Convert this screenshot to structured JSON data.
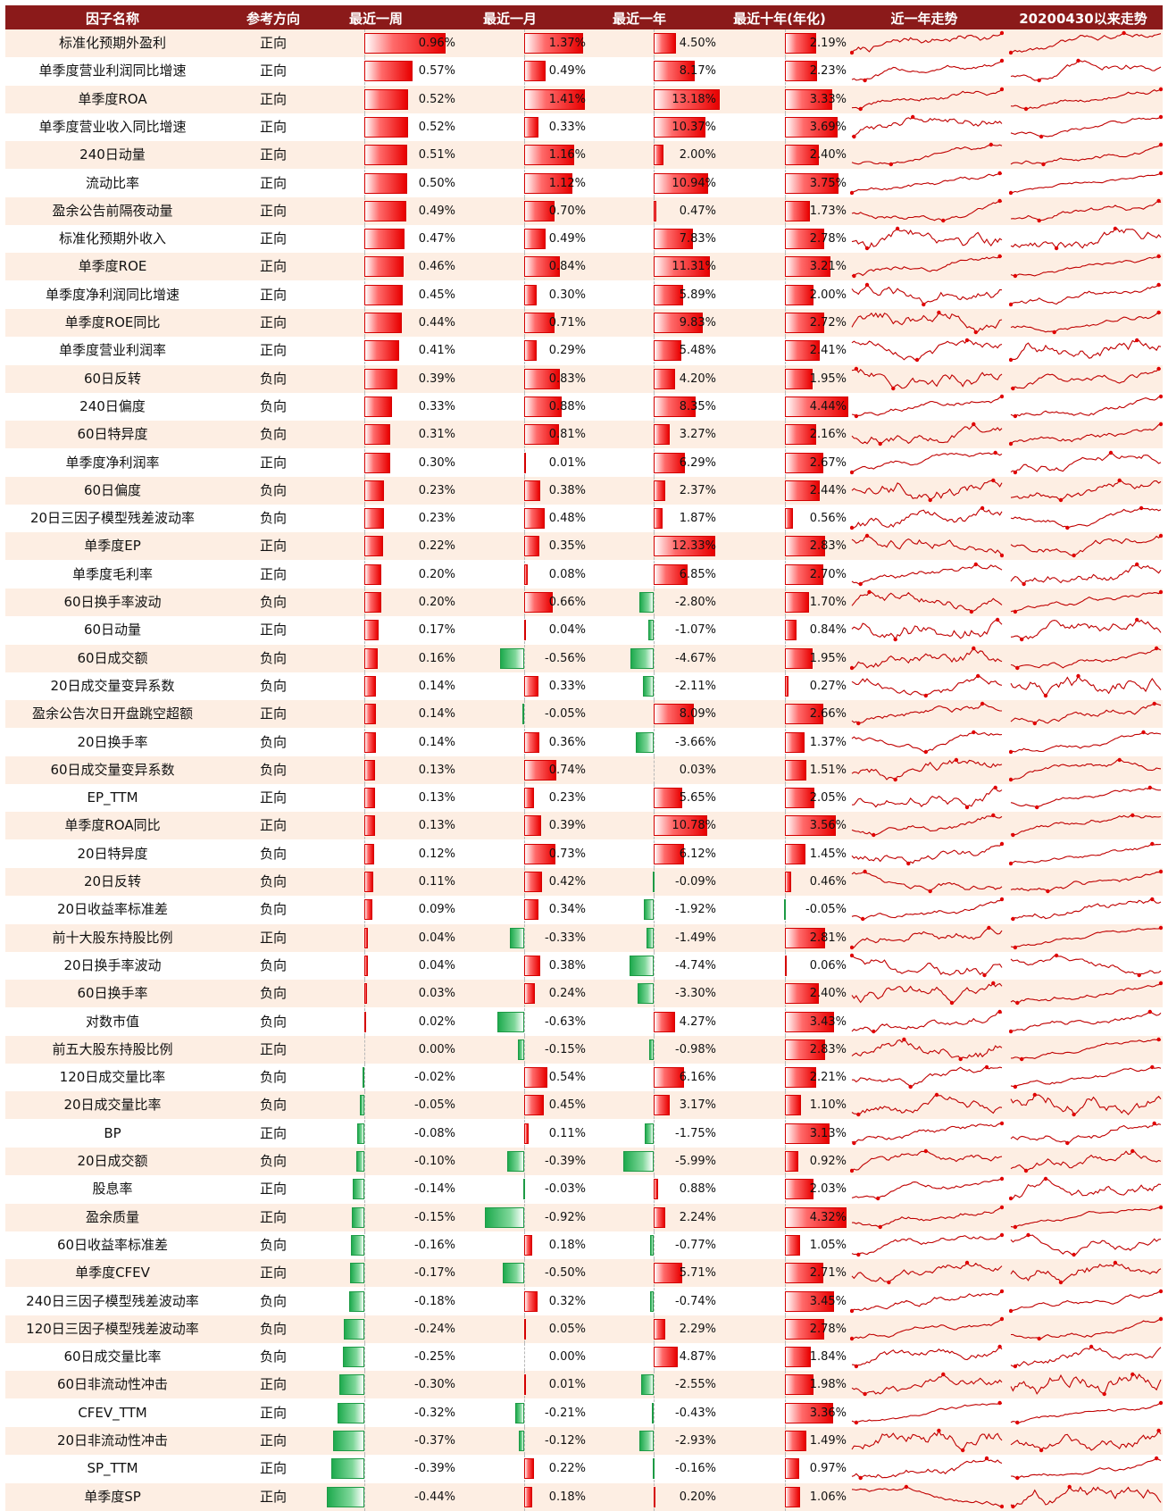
{
  "header": {
    "factor_name": "因子名称",
    "direction": "参考方向",
    "week": "最近一周",
    "month": "最近一月",
    "year": "最近一年",
    "decade": "最近十年(年化)",
    "trend_year": "近一年走势",
    "trend_since": "20200430以来走势"
  },
  "colors": {
    "header_bg": "#8b1a1a",
    "row_alt": "#fdeee3",
    "positive": "#e80000",
    "negative": "#1eaa4e",
    "sparkline": "#c00000"
  },
  "chart_data": {
    "type": "table",
    "title": "",
    "columns": [
      "因子名称",
      "参考方向",
      "最近一周",
      "最近一月",
      "最近一年",
      "最近十年(年化)",
      "近一年走势",
      "20200430以来走势"
    ],
    "rows": [
      {
        "name": "标准化预期外盈利",
        "direction": "正向",
        "week": 0.96,
        "month": 1.37,
        "year": 4.5,
        "decade": 2.19
      },
      {
        "name": "单季度营业利润同比增速",
        "direction": "正向",
        "week": 0.57,
        "month": 0.49,
        "year": 8.17,
        "decade": 2.23
      },
      {
        "name": "单季度ROA",
        "direction": "正向",
        "week": 0.52,
        "month": 1.41,
        "year": 13.18,
        "decade": 3.33
      },
      {
        "name": "单季度营业收入同比增速",
        "direction": "正向",
        "week": 0.52,
        "month": 0.33,
        "year": 10.37,
        "decade": 3.69
      },
      {
        "name": "240日动量",
        "direction": "正向",
        "week": 0.51,
        "month": 1.16,
        "year": 2.0,
        "decade": 2.4
      },
      {
        "name": "流动比率",
        "direction": "正向",
        "week": 0.5,
        "month": 1.12,
        "year": 10.94,
        "decade": 3.75
      },
      {
        "name": "盈余公告前隔夜动量",
        "direction": "正向",
        "week": 0.49,
        "month": 0.7,
        "year": 0.47,
        "decade": 1.73
      },
      {
        "name": "标准化预期外收入",
        "direction": "正向",
        "week": 0.47,
        "month": 0.49,
        "year": 7.83,
        "decade": 2.78
      },
      {
        "name": "单季度ROE",
        "direction": "正向",
        "week": 0.46,
        "month": 0.84,
        "year": 11.31,
        "decade": 3.21
      },
      {
        "name": "单季度净利润同比增速",
        "direction": "正向",
        "week": 0.45,
        "month": 0.3,
        "year": 5.89,
        "decade": 2.0
      },
      {
        "name": "单季度ROE同比",
        "direction": "正向",
        "week": 0.44,
        "month": 0.71,
        "year": 9.83,
        "decade": 2.72
      },
      {
        "name": "单季度营业利润率",
        "direction": "正向",
        "week": 0.41,
        "month": 0.29,
        "year": 5.48,
        "decade": 2.41
      },
      {
        "name": "60日反转",
        "direction": "负向",
        "week": 0.39,
        "month": 0.83,
        "year": 4.2,
        "decade": 1.95
      },
      {
        "name": "240日偏度",
        "direction": "负向",
        "week": 0.33,
        "month": 0.88,
        "year": 8.35,
        "decade": 4.44
      },
      {
        "name": "60日特异度",
        "direction": "负向",
        "week": 0.31,
        "month": 0.81,
        "year": 3.27,
        "decade": 2.16
      },
      {
        "name": "单季度净利润率",
        "direction": "正向",
        "week": 0.3,
        "month": 0.01,
        "year": 6.29,
        "decade": 2.67
      },
      {
        "name": "60日偏度",
        "direction": "负向",
        "week": 0.23,
        "month": 0.38,
        "year": 2.37,
        "decade": 2.44
      },
      {
        "name": "20日三因子模型残差波动率",
        "direction": "负向",
        "week": 0.23,
        "month": 0.48,
        "year": 1.87,
        "decade": 0.56
      },
      {
        "name": "单季度EP",
        "direction": "正向",
        "week": 0.22,
        "month": 0.35,
        "year": 12.33,
        "decade": 2.83
      },
      {
        "name": "单季度毛利率",
        "direction": "正向",
        "week": 0.2,
        "month": 0.08,
        "year": 6.85,
        "decade": 2.7
      },
      {
        "name": "60日换手率波动",
        "direction": "负向",
        "week": 0.2,
        "month": 0.66,
        "year": -2.8,
        "decade": 1.7
      },
      {
        "name": "60日动量",
        "direction": "正向",
        "week": 0.17,
        "month": 0.04,
        "year": -1.07,
        "decade": 0.84
      },
      {
        "name": "60日成交额",
        "direction": "负向",
        "week": 0.16,
        "month": -0.56,
        "year": -4.67,
        "decade": 1.95
      },
      {
        "name": "20日成交量变异系数",
        "direction": "负向",
        "week": 0.14,
        "month": 0.33,
        "year": -2.11,
        "decade": 0.27
      },
      {
        "name": "盈余公告次日开盘跳空超额",
        "direction": "正向",
        "week": 0.14,
        "month": -0.05,
        "year": 8.09,
        "decade": 2.66
      },
      {
        "name": "20日换手率",
        "direction": "负向",
        "week": 0.14,
        "month": 0.36,
        "year": -3.66,
        "decade": 1.37
      },
      {
        "name": "60日成交量变异系数",
        "direction": "负向",
        "week": 0.13,
        "month": 0.74,
        "year": 0.03,
        "decade": 1.51
      },
      {
        "name": "EP_TTM",
        "direction": "正向",
        "week": 0.13,
        "month": 0.23,
        "year": 5.65,
        "decade": 2.05
      },
      {
        "name": "单季度ROA同比",
        "direction": "正向",
        "week": 0.13,
        "month": 0.39,
        "year": 10.78,
        "decade": 3.56
      },
      {
        "name": "20日特异度",
        "direction": "负向",
        "week": 0.12,
        "month": 0.73,
        "year": 6.12,
        "decade": 1.45
      },
      {
        "name": "20日反转",
        "direction": "负向",
        "week": 0.11,
        "month": 0.42,
        "year": -0.09,
        "decade": 0.46
      },
      {
        "name": "20日收益率标准差",
        "direction": "负向",
        "week": 0.09,
        "month": 0.34,
        "year": -1.92,
        "decade": -0.05
      },
      {
        "name": "前十大股东持股比例",
        "direction": "正向",
        "week": 0.04,
        "month": -0.33,
        "year": -1.49,
        "decade": 2.81
      },
      {
        "name": "20日换手率波动",
        "direction": "负向",
        "week": 0.04,
        "month": 0.38,
        "year": -4.74,
        "decade": 0.06
      },
      {
        "name": "60日换手率",
        "direction": "负向",
        "week": 0.03,
        "month": 0.24,
        "year": -3.3,
        "decade": 2.4
      },
      {
        "name": "对数市值",
        "direction": "负向",
        "week": 0.02,
        "month": -0.63,
        "year": 4.27,
        "decade": 3.43
      },
      {
        "name": "前五大股东持股比例",
        "direction": "正向",
        "week": 0.0,
        "month": -0.15,
        "year": -0.98,
        "decade": 2.83
      },
      {
        "name": "120日成交量比率",
        "direction": "负向",
        "week": -0.02,
        "month": 0.54,
        "year": 6.16,
        "decade": 2.21
      },
      {
        "name": "20日成交量比率",
        "direction": "负向",
        "week": -0.05,
        "month": 0.45,
        "year": 3.17,
        "decade": 1.1
      },
      {
        "name": "BP",
        "direction": "正向",
        "week": -0.08,
        "month": 0.11,
        "year": -1.75,
        "decade": 3.13
      },
      {
        "name": "20日成交额",
        "direction": "负向",
        "week": -0.1,
        "month": -0.39,
        "year": -5.99,
        "decade": 0.92
      },
      {
        "name": "股息率",
        "direction": "正向",
        "week": -0.14,
        "month": -0.03,
        "year": 0.88,
        "decade": 2.03
      },
      {
        "name": "盈余质量",
        "direction": "正向",
        "week": -0.15,
        "month": -0.92,
        "year": 2.24,
        "decade": 4.32
      },
      {
        "name": "60日收益率标准差",
        "direction": "负向",
        "week": -0.16,
        "month": 0.18,
        "year": -0.77,
        "decade": 1.05
      },
      {
        "name": "单季度CFEV",
        "direction": "正向",
        "week": -0.17,
        "month": -0.5,
        "year": 5.71,
        "decade": 2.71
      },
      {
        "name": "240日三因子模型残差波动率",
        "direction": "负向",
        "week": -0.18,
        "month": 0.32,
        "year": -0.74,
        "decade": 3.45
      },
      {
        "name": "120日三因子模型残差波动率",
        "direction": "负向",
        "week": -0.24,
        "month": 0.05,
        "year": 2.29,
        "decade": 2.78
      },
      {
        "name": "60日成交量比率",
        "direction": "负向",
        "week": -0.25,
        "month": 0.0,
        "year": 4.87,
        "decade": 1.84
      },
      {
        "name": "60日非流动性冲击",
        "direction": "正向",
        "week": -0.3,
        "month": 0.01,
        "year": -2.55,
        "decade": 1.98
      },
      {
        "name": "CFEV_TTM",
        "direction": "正向",
        "week": -0.32,
        "month": -0.21,
        "year": -0.43,
        "decade": 3.36
      },
      {
        "name": "20日非流动性冲击",
        "direction": "正向",
        "week": -0.37,
        "month": -0.12,
        "year": -2.93,
        "decade": 1.49
      },
      {
        "name": "SP_TTM",
        "direction": "正向",
        "week": -0.39,
        "month": 0.22,
        "year": -0.16,
        "decade": 0.97
      },
      {
        "name": "单季度SP",
        "direction": "正向",
        "week": -0.44,
        "month": 0.18,
        "year": 0.2,
        "decade": 1.06
      }
    ]
  }
}
